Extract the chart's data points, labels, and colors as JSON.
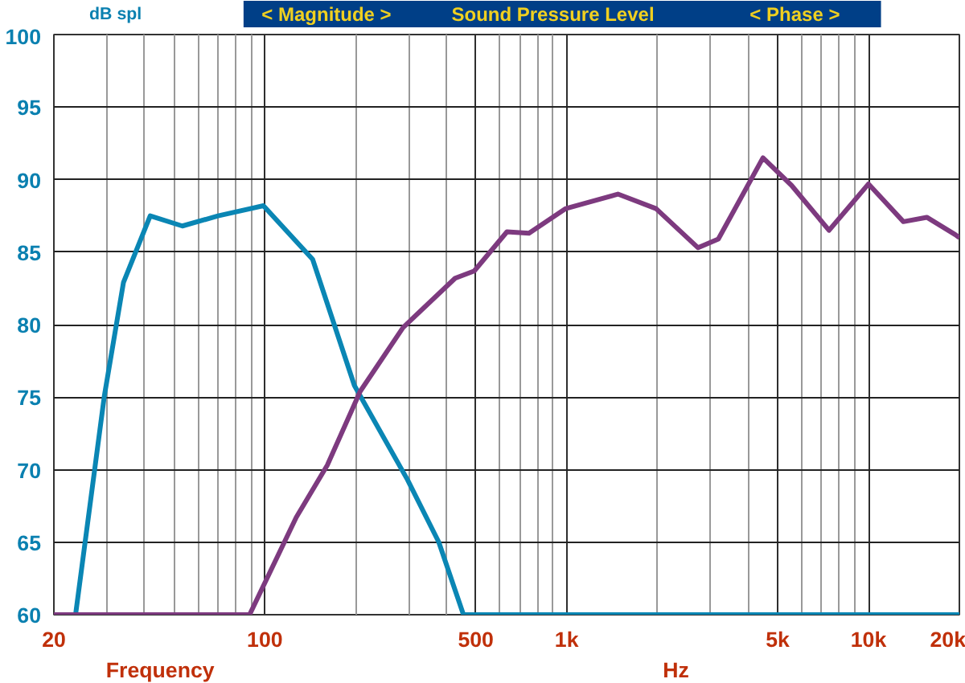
{
  "chart_data": {
    "type": "line",
    "title": "Sound Pressure Level",
    "xlabel": "Frequency",
    "ylabel": "dB spl",
    "annotations": [
      "< Magnitude >",
      "< Phase >",
      "Hz"
    ],
    "log": "x",
    "xlim": [
      20,
      20000
    ],
    "ylim": [
      60,
      100
    ],
    "xticks": [
      20,
      100,
      500,
      {
        "value": 1000,
        "label": "1k"
      },
      {
        "value": 5000,
        "label": "5k"
      },
      {
        "value": 10000,
        "label": "10k"
      },
      {
        "value": 20000,
        "label": "20k"
      }
    ],
    "yticks": [
      60,
      65,
      70,
      75,
      80,
      85,
      90,
      95,
      100
    ],
    "grid": true,
    "marker": "none",
    "line_style": "solid",
    "series": [
      {
        "color": "#0a86b4",
        "x": [
          20,
          23.6,
          29.4,
          34,
          41.7,
          53.3,
          70,
          98.9,
          144,
          198,
          297,
          377,
          455,
          20000
        ],
        "values": [
          60,
          60,
          75.1,
          82.9,
          87.5,
          86.8,
          87.5,
          88.2,
          84.5,
          75.8,
          69.3,
          65,
          60,
          60
        ]
      },
      {
        "color": "#7d3a7f",
        "x": [
          20,
          89,
          127,
          161,
          207,
          287,
          427,
          494,
          634,
          750,
          993,
          1478,
          1977,
          2725,
          3180,
          4470,
          5560,
          7400,
          10000,
          13050,
          15600,
          19400,
          20000
        ],
        "values": [
          60,
          60,
          66.7,
          70.3,
          75.4,
          79.8,
          83.2,
          83.7,
          86.4,
          86.3,
          88,
          89,
          88,
          85.3,
          85.9,
          91.5,
          89.6,
          86.5,
          89.7,
          87.1,
          87.4,
          86.2,
          86
        ]
      }
    ]
  }
}
